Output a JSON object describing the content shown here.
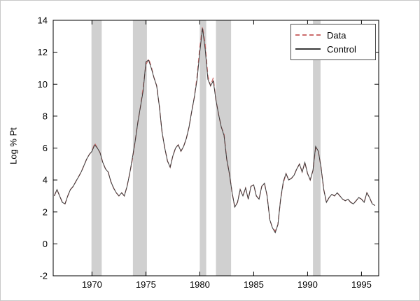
{
  "colors": {
    "band": "#d0d0d0",
    "axis": "#000000",
    "data_line": "#cc6b6b",
    "control_line": "#3a3a3a",
    "background": "#ffffff"
  },
  "chart_data": {
    "type": "line",
    "title": "",
    "xlabel": "",
    "ylabel": "Log % Pt",
    "xlim": [
      1966.4,
      1996.6
    ],
    "ylim": [
      -2,
      14
    ],
    "xticks": [
      1970,
      1975,
      1980,
      1985,
      1990,
      1995
    ],
    "yticks": [
      -2,
      0,
      2,
      4,
      6,
      8,
      10,
      12,
      14
    ],
    "grid": false,
    "legend_position": "top-right",
    "shaded_regions": [
      [
        1969.95,
        1970.9
      ],
      [
        1973.8,
        1975.1
      ],
      [
        1980.0,
        1980.6
      ],
      [
        1981.5,
        1982.9
      ],
      [
        1990.5,
        1991.2
      ]
    ],
    "x": [
      1966.5,
      1966.75,
      1967.0,
      1967.25,
      1967.5,
      1967.75,
      1968.0,
      1968.25,
      1968.5,
      1968.75,
      1969.0,
      1969.25,
      1969.5,
      1969.75,
      1970.0,
      1970.25,
      1970.5,
      1970.75,
      1971.0,
      1971.25,
      1971.5,
      1971.75,
      1972.0,
      1972.25,
      1972.5,
      1972.75,
      1973.0,
      1973.25,
      1973.5,
      1973.75,
      1974.0,
      1974.25,
      1974.5,
      1974.75,
      1975.0,
      1975.25,
      1975.5,
      1975.75,
      1976.0,
      1976.25,
      1976.5,
      1976.75,
      1977.0,
      1977.25,
      1977.5,
      1977.75,
      1978.0,
      1978.25,
      1978.5,
      1978.75,
      1979.0,
      1979.25,
      1979.5,
      1979.75,
      1980.0,
      1980.25,
      1980.5,
      1980.75,
      1981.0,
      1981.25,
      1981.5,
      1981.75,
      1982.0,
      1982.25,
      1982.5,
      1982.75,
      1983.0,
      1983.25,
      1983.5,
      1983.75,
      1984.0,
      1984.25,
      1984.5,
      1984.75,
      1985.0,
      1985.25,
      1985.5,
      1985.75,
      1986.0,
      1986.25,
      1986.5,
      1986.75,
      1987.0,
      1987.25,
      1987.5,
      1987.75,
      1988.0,
      1988.25,
      1988.5,
      1988.75,
      1989.0,
      1989.25,
      1989.5,
      1989.75,
      1990.0,
      1990.25,
      1990.5,
      1990.75,
      1991.0,
      1991.25,
      1991.5,
      1991.75,
      1992.0,
      1992.25,
      1992.5,
      1992.75,
      1993.0,
      1993.25,
      1993.5,
      1993.75,
      1994.0,
      1994.25,
      1994.5,
      1994.75,
      1995.0,
      1995.25,
      1995.5,
      1995.75,
      1996.0,
      1996.25
    ],
    "series": [
      {
        "name": "Data",
        "color": "#cc6b6b",
        "dash": true,
        "values": [
          3.0,
          3.4,
          3.0,
          2.6,
          2.5,
          3.0,
          3.4,
          3.6,
          3.9,
          4.2,
          4.5,
          4.9,
          5.3,
          5.6,
          5.8,
          6.3,
          6.0,
          5.7,
          5.1,
          4.7,
          4.5,
          3.9,
          3.5,
          3.2,
          3.0,
          3.2,
          3.0,
          3.6,
          4.4,
          5.3,
          6.4,
          7.6,
          8.6,
          9.8,
          11.2,
          11.6,
          11.1,
          10.4,
          9.9,
          8.6,
          7.0,
          6.0,
          5.2,
          4.8,
          5.5,
          6.0,
          6.2,
          5.8,
          6.1,
          6.6,
          7.3,
          8.3,
          9.2,
          10.5,
          12.3,
          13.6,
          12.5,
          10.5,
          9.9,
          10.4,
          9.0,
          8.1,
          7.3,
          6.9,
          5.3,
          4.4,
          3.2,
          2.3,
          2.6,
          3.4,
          3.0,
          3.5,
          2.8,
          3.6,
          3.7,
          3.0,
          2.8,
          3.6,
          3.8,
          3.0,
          1.5,
          1.0,
          0.8,
          1.2,
          2.8,
          3.8,
          4.4,
          4.0,
          4.1,
          4.3,
          4.7,
          5.0,
          4.5,
          5.1,
          4.4,
          4.0,
          4.6,
          6.0,
          5.8,
          4.8,
          3.4,
          2.6,
          2.9,
          3.1,
          3.0,
          3.2,
          3.0,
          2.8,
          2.7,
          2.8,
          2.6,
          2.5,
          2.7,
          2.9,
          2.8,
          2.6,
          3.2,
          2.9,
          2.5,
          2.4
        ]
      },
      {
        "name": "Control",
        "color": "#3a3a3a",
        "dash": false,
        "values": [
          3.0,
          3.4,
          3.0,
          2.6,
          2.5,
          3.0,
          3.4,
          3.6,
          3.9,
          4.2,
          4.5,
          4.9,
          5.3,
          5.6,
          5.8,
          6.2,
          6.0,
          5.7,
          5.1,
          4.7,
          4.5,
          3.9,
          3.5,
          3.2,
          3.0,
          3.2,
          3.0,
          3.6,
          4.4,
          5.4,
          6.4,
          7.6,
          8.6,
          9.6,
          11.4,
          11.5,
          11.0,
          10.4,
          9.9,
          8.6,
          7.0,
          6.0,
          5.2,
          4.8,
          5.5,
          6.0,
          6.2,
          5.8,
          6.1,
          6.6,
          7.3,
          8.3,
          9.2,
          10.3,
          12.0,
          13.5,
          12.2,
          10.3,
          9.9,
          10.2,
          9.0,
          8.1,
          7.3,
          6.8,
          5.3,
          4.4,
          3.2,
          2.3,
          2.6,
          3.4,
          3.0,
          3.5,
          2.8,
          3.6,
          3.7,
          3.0,
          2.8,
          3.6,
          3.8,
          3.0,
          1.5,
          1.0,
          0.7,
          1.2,
          2.8,
          3.9,
          4.4,
          4.0,
          4.1,
          4.3,
          4.7,
          5.0,
          4.5,
          5.1,
          4.4,
          4.0,
          4.6,
          6.1,
          5.8,
          4.8,
          3.4,
          2.6,
          2.9,
          3.1,
          3.0,
          3.2,
          3.0,
          2.8,
          2.7,
          2.8,
          2.6,
          2.5,
          2.7,
          2.9,
          2.8,
          2.6,
          3.2,
          2.9,
          2.5,
          2.4
        ]
      }
    ]
  }
}
